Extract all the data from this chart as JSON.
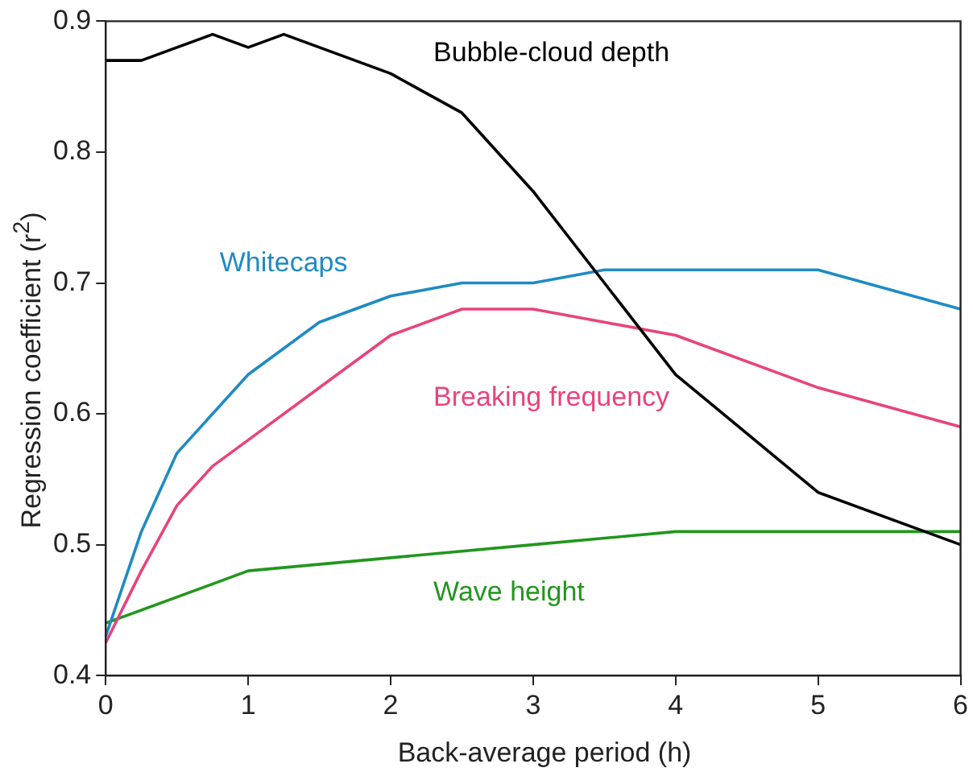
{
  "chart_data": {
    "type": "line",
    "xlabel": "Back-average period  (h)",
    "ylabel": "Regression coefficient (r$^{2}$)",
    "x": [
      0,
      0.25,
      0.5,
      0.75,
      1,
      1.25,
      1.5,
      2,
      2.5,
      3,
      3.5,
      4,
      5,
      6
    ],
    "series": [
      {
        "name": "Bubble-cloud depth",
        "color": "#000000",
        "values": [
          0.87,
          0.87,
          0.88,
          0.89,
          0.88,
          0.89,
          0.88,
          0.86,
          0.83,
          0.77,
          0.7,
          0.63,
          0.54,
          0.5
        ]
      },
      {
        "name": "Whitecaps",
        "color": "#1e8bc3",
        "values": [
          0.43,
          0.51,
          0.57,
          0.6,
          0.63,
          null,
          0.67,
          0.69,
          0.7,
          0.7,
          0.71,
          0.71,
          0.71,
          0.68
        ]
      },
      {
        "name": "Breaking frequency",
        "color": "#e8437e",
        "values": [
          0.425,
          0.48,
          0.53,
          0.56,
          0.58,
          null,
          0.62,
          0.66,
          0.68,
          0.68,
          0.67,
          0.66,
          0.62,
          0.59
        ]
      },
      {
        "name": "Wave height",
        "color": "#22961e",
        "values": [
          0.44,
          null,
          null,
          null,
          0.48,
          null,
          null,
          0.49,
          null,
          0.5,
          null,
          0.51,
          0.51,
          0.51
        ]
      }
    ],
    "xlim": [
      0,
      6
    ],
    "xticks": [
      0,
      1,
      2,
      3,
      4,
      5,
      6
    ],
    "ylim": [
      0.4,
      0.9
    ],
    "yticks": [
      0.4,
      0.5,
      0.6,
      0.7,
      0.8,
      0.9
    ],
    "grid": false,
    "legend": false,
    "marker": "none",
    "line_style": "solid"
  }
}
